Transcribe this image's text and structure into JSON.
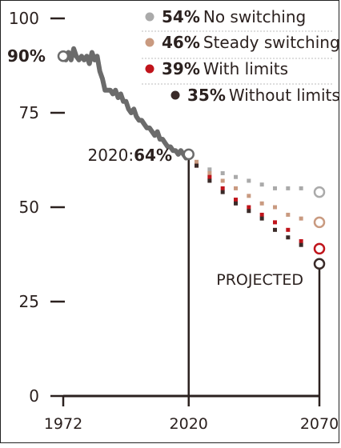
{
  "chart_data": {
    "type": "line",
    "x_ticks": [
      "1972",
      "2020",
      "2070"
    ],
    "y_ticks": [
      "0",
      "25",
      "50",
      "75",
      "100"
    ],
    "ylim": [
      0,
      100
    ],
    "xlim": [
      1972,
      2070
    ],
    "grid": false,
    "historical": {
      "start_label": "90%",
      "end_label_prefix": "2020:",
      "end_label_value": "64%",
      "color": "#6b6b6b",
      "points": [
        [
          1972,
          90
        ],
        [
          1973,
          89
        ],
        [
          1974,
          91
        ],
        [
          1975,
          89
        ],
        [
          1976,
          92
        ],
        [
          1977,
          90
        ],
        [
          1978,
          89
        ],
        [
          1979,
          90
        ],
        [
          1980,
          89
        ],
        [
          1981,
          90
        ],
        [
          1982,
          88
        ],
        [
          1983,
          91
        ],
        [
          1984,
          89
        ],
        [
          1985,
          90
        ],
        [
          1986,
          86
        ],
        [
          1987,
          84
        ],
        [
          1988,
          81
        ],
        [
          1989,
          81
        ],
        [
          1990,
          81
        ],
        [
          1991,
          80
        ],
        [
          1992,
          81
        ],
        [
          1993,
          79
        ],
        [
          1994,
          80
        ],
        [
          1995,
          78
        ],
        [
          1996,
          78
        ],
        [
          1997,
          76
        ],
        [
          1998,
          75
        ],
        [
          1999,
          76
        ],
        [
          2000,
          74
        ],
        [
          2001,
          73
        ],
        [
          2002,
          73
        ],
        [
          2003,
          72
        ],
        [
          2004,
          71
        ],
        [
          2005,
          71
        ],
        [
          2006,
          70
        ],
        [
          2007,
          69
        ],
        [
          2008,
          70
        ],
        [
          2009,
          68
        ],
        [
          2010,
          68
        ],
        [
          2011,
          67
        ],
        [
          2012,
          66
        ],
        [
          2013,
          66
        ],
        [
          2014,
          65
        ],
        [
          2015,
          65
        ],
        [
          2016,
          64
        ],
        [
          2017,
          65
        ],
        [
          2018,
          64
        ],
        [
          2019,
          63
        ],
        [
          2020,
          64
        ]
      ]
    },
    "projected_label": "PROJECTED",
    "series": [
      {
        "name": "No switching",
        "pct": "54%",
        "color": "#aaaaaa",
        "x": [
          2023,
          2028,
          2033,
          2038,
          2043,
          2048,
          2053,
          2058,
          2063,
          2070
        ],
        "values": [
          62,
          60,
          59,
          58,
          57,
          56,
          55,
          55,
          55,
          54
        ]
      },
      {
        "name": "Steady switching",
        "pct": "46%",
        "color": "#c99a80",
        "x": [
          2023,
          2028,
          2033,
          2038,
          2043,
          2048,
          2053,
          2058,
          2063,
          2070
        ],
        "values": [
          62,
          59,
          57,
          55,
          53,
          51,
          50,
          48,
          47,
          46
        ]
      },
      {
        "name": "With limits",
        "pct": "39%",
        "color": "#c0141b",
        "x": [
          2023,
          2028,
          2033,
          2038,
          2043,
          2048,
          2053,
          2058,
          2063,
          2070
        ],
        "values": [
          61,
          58,
          55,
          52,
          50,
          48,
          46,
          44,
          41,
          39
        ]
      },
      {
        "name": "Without limits",
        "pct": "35%",
        "color": "#3a2a28",
        "x": [
          2023,
          2028,
          2033,
          2038,
          2043,
          2048,
          2053,
          2058,
          2063,
          2070
        ],
        "values": [
          61,
          57,
          54,
          51,
          49,
          47,
          44,
          42,
          40,
          35
        ]
      }
    ]
  }
}
